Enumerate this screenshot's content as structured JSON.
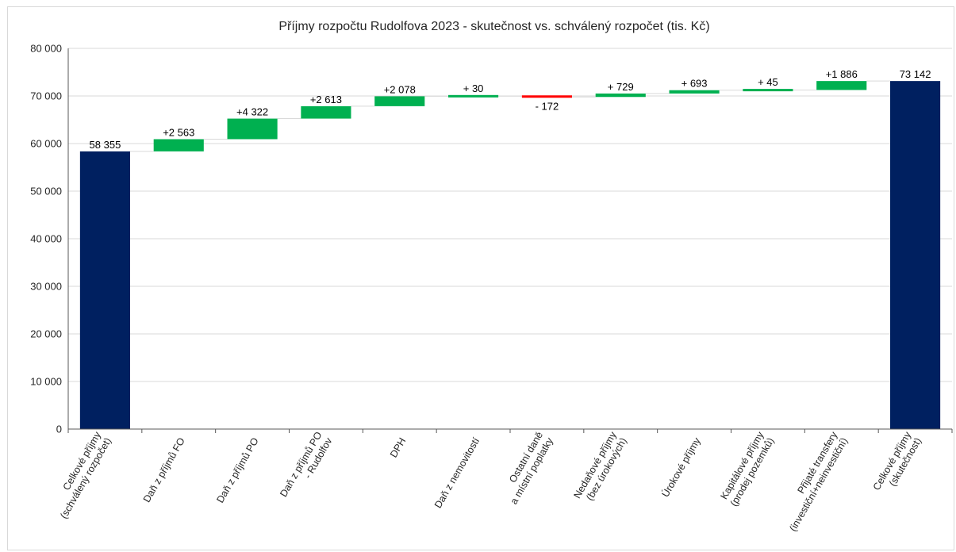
{
  "chart_data": {
    "type": "waterfall",
    "title": "Příjmy rozpočtu Rudolfova 2023 - skutečnost vs. schválený rozpočet (tis. Kč)",
    "ylim": [
      0,
      80000
    ],
    "yticks": [
      0,
      10000,
      20000,
      30000,
      40000,
      50000,
      60000,
      70000,
      80000
    ],
    "ytick_labels": [
      "0",
      "10 000",
      "20 000",
      "30 000",
      "40 000",
      "50 000",
      "60 000",
      "70 000",
      "80 000"
    ],
    "grid": true,
    "colors": {
      "total": "#002060",
      "increase": "#00b050",
      "decrease": "#ff0000"
    },
    "items": [
      {
        "category": [
          "Celkové příjmy",
          "(schválený rozpočet)"
        ],
        "kind": "total",
        "value": 58355,
        "label": "58 355"
      },
      {
        "category": [
          "Daň z příjmů FO"
        ],
        "kind": "delta",
        "value": 2563,
        "label": "+2 563"
      },
      {
        "category": [
          "Daň z příjmů PO"
        ],
        "kind": "delta",
        "value": 4322,
        "label": "+4 322"
      },
      {
        "category": [
          "Daň z příjmů PO",
          "- Rudolfov"
        ],
        "kind": "delta",
        "value": 2613,
        "label": "+2 613"
      },
      {
        "category": [
          "DPH"
        ],
        "kind": "delta",
        "value": 2078,
        "label": "+2 078"
      },
      {
        "category": [
          "Daň z nemovitostí"
        ],
        "kind": "delta",
        "value": 30,
        "label": "+ 30"
      },
      {
        "category": [
          "Ostatní daně",
          "a místní poplatky"
        ],
        "kind": "delta",
        "value": -172,
        "label": "- 172"
      },
      {
        "category": [
          "Nedaňové příjmy",
          "(bez úrokových)"
        ],
        "kind": "delta",
        "value": 729,
        "label": "+ 729"
      },
      {
        "category": [
          "Úrokové příjmy"
        ],
        "kind": "delta",
        "value": 693,
        "label": "+ 693"
      },
      {
        "category": [
          "Kapitálové příjmy",
          "(prodej pozemků)"
        ],
        "kind": "delta",
        "value": 45,
        "label": "+ 45"
      },
      {
        "category": [
          "Přijaté transfery",
          "(investiční+neinvestiční)"
        ],
        "kind": "delta",
        "value": 1886,
        "label": "+1 886"
      },
      {
        "category": [
          "Celkové příjmy",
          "(skutečnost)"
        ],
        "kind": "total",
        "value": 73142,
        "label": "73 142"
      }
    ]
  }
}
